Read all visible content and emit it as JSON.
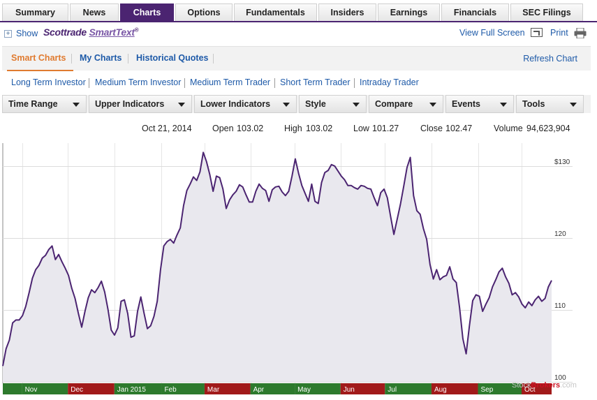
{
  "tabs": [
    {
      "label": "Summary",
      "active": false
    },
    {
      "label": "News",
      "active": false
    },
    {
      "label": "Charts",
      "active": true
    },
    {
      "label": "Options",
      "active": false
    },
    {
      "label": "Fundamentals",
      "active": false
    },
    {
      "label": "Insiders",
      "active": false
    },
    {
      "label": "Earnings",
      "active": false
    },
    {
      "label": "Financials",
      "active": false
    },
    {
      "label": "SEC Filings",
      "active": false
    }
  ],
  "toolbar": {
    "show_label": "Show",
    "brand_main": "Scottrade",
    "brand_sub": "SmartText",
    "brand_mark": "®",
    "view_full_label": "View Full Screen",
    "print_label": "Print"
  },
  "subnav": {
    "items": [
      {
        "label": "Smart Charts",
        "active": true
      },
      {
        "label": "My Charts",
        "active": false
      },
      {
        "label": "Historical Quotes",
        "active": false
      }
    ],
    "refresh_label": "Refresh Chart"
  },
  "presets": [
    "Long Term Investor",
    "Medium Term Investor",
    "Medium Term Trader",
    "Short Term Trader",
    "Intraday Trader"
  ],
  "dropdowns": [
    "Time Range",
    "Upper Indicators",
    "Lower Indicators",
    "Style",
    "Compare",
    "Events",
    "Tools"
  ],
  "quote": {
    "date": "Oct 21, 2014",
    "open_label": "Open",
    "open": "103.02",
    "high_label": "High",
    "high": "103.02",
    "low_label": "Low",
    "low": "101.27",
    "close_label": "Close",
    "close": "102.47",
    "volume_label": "Volume",
    "volume": "94,623,904"
  },
  "watermark": {
    "prefix": "Stock",
    "suffix": "Brokers",
    "tld": ".com"
  },
  "colors": {
    "brand_purple": "#4b2471",
    "line": "#4b2471",
    "area": "#e9e8ee",
    "month_green": "#2d7a2d",
    "month_red": "#a11a1a",
    "link_blue": "#1e5aa8",
    "active_orange": "#e07b30"
  },
  "chart_data": {
    "type": "area",
    "ylim": [
      100,
      133
    ],
    "yticks": [
      100,
      110,
      120,
      130
    ],
    "ytick_labels": [
      "100",
      "110",
      "120",
      "$130"
    ],
    "months": [
      {
        "label": "",
        "color": "green"
      },
      {
        "label": "Nov",
        "color": "green"
      },
      {
        "label": "Dec",
        "color": "red"
      },
      {
        "label": "Jan 2015",
        "color": "green"
      },
      {
        "label": "Feb",
        "color": "green"
      },
      {
        "label": "Mar",
        "color": "red"
      },
      {
        "label": "Apr",
        "color": "green"
      },
      {
        "label": "May",
        "color": "green"
      },
      {
        "label": "Jun",
        "color": "red"
      },
      {
        "label": "Jul",
        "color": "green"
      },
      {
        "label": "Aug",
        "color": "red"
      },
      {
        "label": "Sep",
        "color": "green"
      },
      {
        "label": "Oct",
        "color": "red"
      }
    ],
    "month_fractions": [
      0,
      0.0351,
      0.1186,
      0.2033,
      0.2894,
      0.3676,
      0.4511,
      0.5319,
      0.6154,
      0.6963,
      0.7811,
      0.8658,
      0.9453,
      1.0
    ],
    "series": [
      {
        "values": [
          102.2,
          104.6,
          105.8,
          108.2,
          108.6,
          108.6,
          109.2,
          110.5,
          112.4,
          114.4,
          115.6,
          116.2,
          117.2,
          117.6,
          118.4,
          118.9,
          117.0,
          117.7,
          116.7,
          115.8,
          114.8,
          113.0,
          111.6,
          109.5,
          107.6,
          109.8,
          111.7,
          112.8,
          112.4,
          113.1,
          114.0,
          112.5,
          110.1,
          107.2,
          106.5,
          107.5,
          111.2,
          111.4,
          109.5,
          106.2,
          106.4,
          109.8,
          111.8,
          109.5,
          107.4,
          107.8,
          109.1,
          111.2,
          115.6,
          118.9,
          119.5,
          119.8,
          119.3,
          120.4,
          121.4,
          124.5,
          126.6,
          127.5,
          128.5,
          128.0,
          129.2,
          131.9,
          130.6,
          128.8,
          126.5,
          128.6,
          128.4,
          126.8,
          124.1,
          125.3,
          126.0,
          126.5,
          127.4,
          127.1,
          126.0,
          125.0,
          125.0,
          126.5,
          127.5,
          126.9,
          126.6,
          125.1,
          126.7,
          127.1,
          127.2,
          126.4,
          125.9,
          126.5,
          128.6,
          131.0,
          129.0,
          127.3,
          126.2,
          125.1,
          127.5,
          125.1,
          124.8,
          127.7,
          129.1,
          129.4,
          130.2,
          130.0,
          129.3,
          128.6,
          128.1,
          127.3,
          127.3,
          127.0,
          126.8,
          127.3,
          127.2,
          126.9,
          126.8,
          125.6,
          124.5,
          126.3,
          126.8,
          125.6,
          123.0,
          120.5,
          122.6,
          124.7,
          127.2,
          129.8,
          131.2,
          125.9,
          123.8,
          123.3,
          121.3,
          119.8,
          116.3,
          114.3,
          115.6,
          114.2,
          114.6,
          114.8,
          116.0,
          114.3,
          113.8,
          110.3,
          106.0,
          103.9,
          107.8,
          111.3,
          112.1,
          111.9,
          109.8,
          110.8,
          111.7,
          113.2,
          114.2,
          115.3,
          115.8,
          114.6,
          113.7,
          112.1,
          112.4,
          111.8,
          110.8,
          110.3,
          111.1,
          110.6,
          111.4,
          111.9,
          111.2,
          111.6,
          113.2,
          114.1
        ]
      }
    ]
  }
}
